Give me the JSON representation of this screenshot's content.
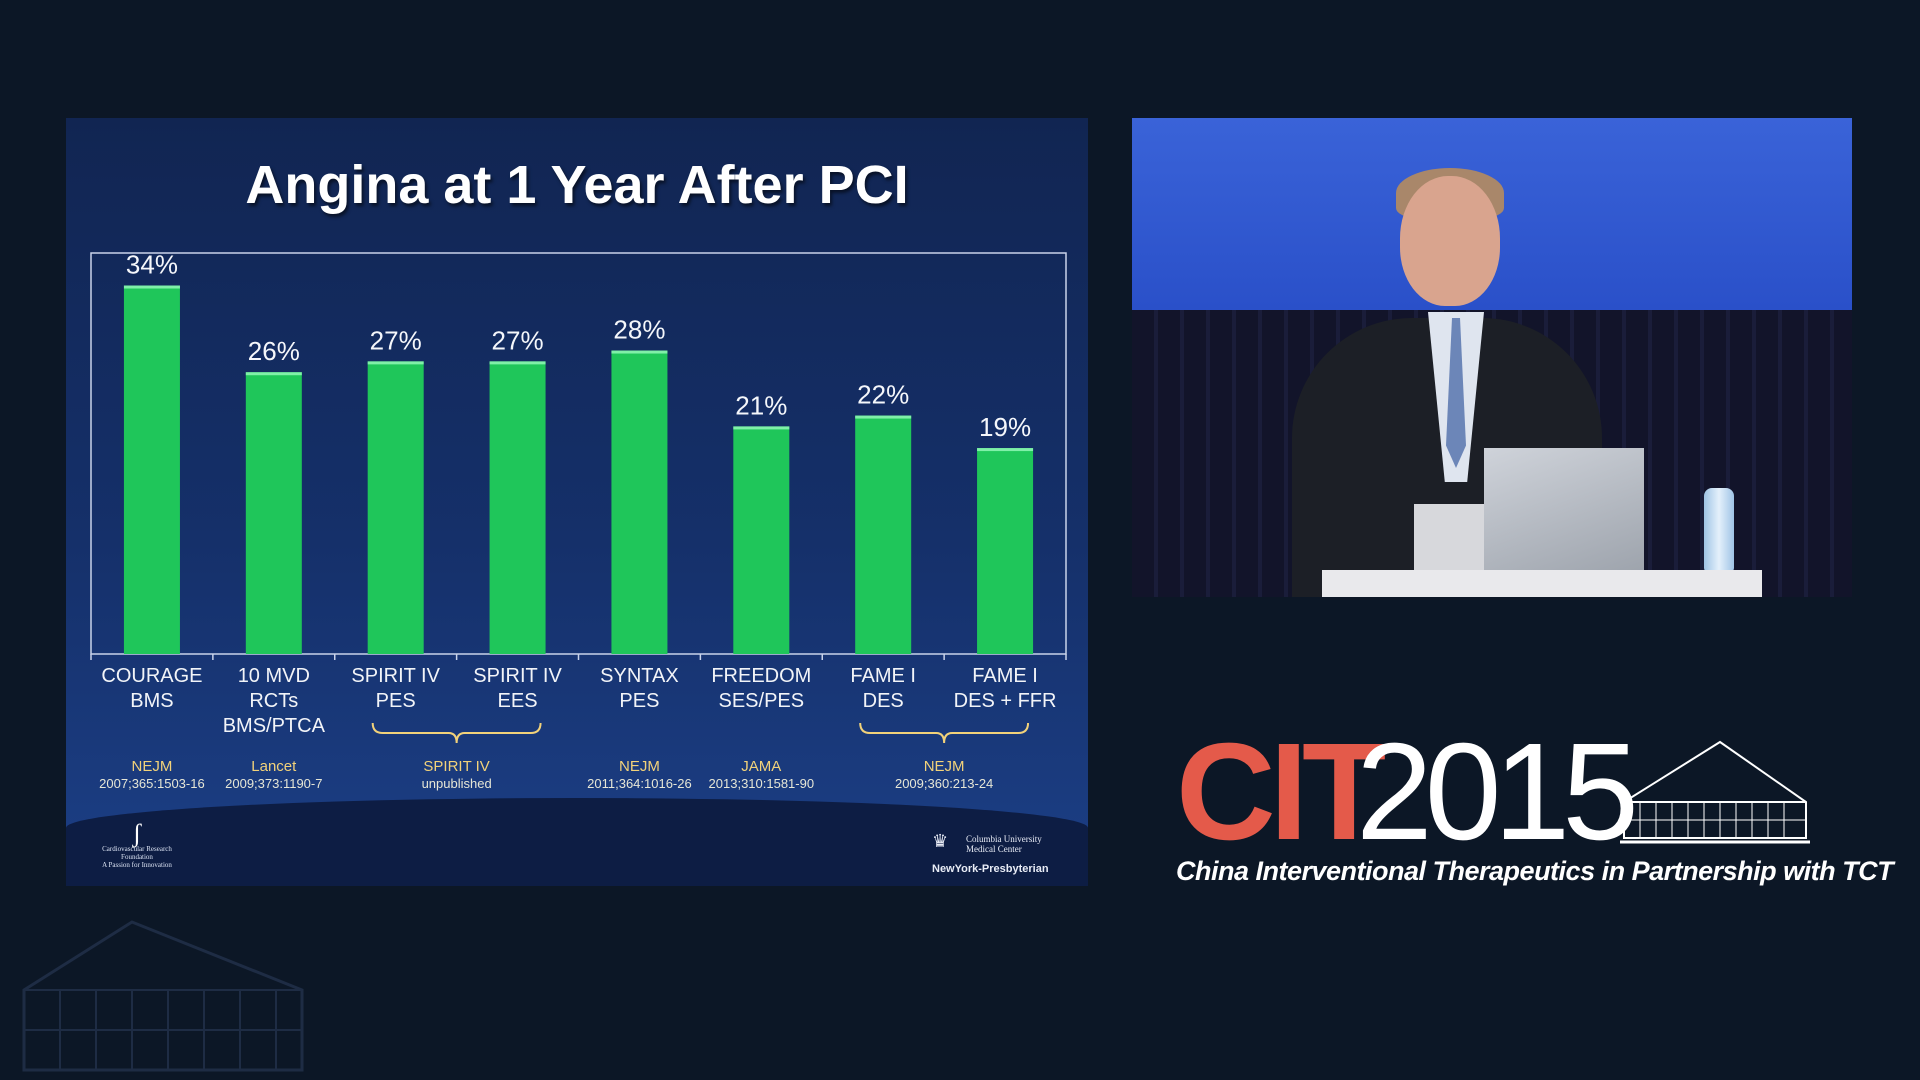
{
  "slide": {
    "title": "Angina at 1 Year After PCI",
    "logo_left_lines": [
      "Cardiovascular Research",
      "Foundation",
      "A Passion for Innovation"
    ],
    "logo_right_lines": [
      "Columbia University",
      "Medical Center",
      "NewYork-Presbyterian"
    ]
  },
  "chart_data": {
    "type": "bar",
    "title": "Angina at 1 Year After PCI",
    "xlabel": "",
    "ylabel": "",
    "ylim": [
      0,
      37
    ],
    "grid": false,
    "bar_color": "#1fc65a",
    "categories": [
      [
        "COURAGE",
        "BMS"
      ],
      [
        "10 MVD",
        "RCTs",
        "BMS/PTCA"
      ],
      [
        "SPIRIT IV",
        "PES"
      ],
      [
        "SPIRIT IV",
        "EES"
      ],
      [
        "SYNTAX",
        "PES"
      ],
      [
        "FREEDOM",
        "SES/PES"
      ],
      [
        "FAME I",
        "DES"
      ],
      [
        "FAME I",
        "DES + FFR"
      ]
    ],
    "values": [
      34,
      26,
      27,
      27,
      28,
      21,
      22,
      19
    ],
    "value_labels": [
      "34%",
      "26%",
      "27%",
      "27%",
      "28%",
      "21%",
      "22%",
      "19%"
    ],
    "references": [
      {
        "span": [
          0,
          0
        ],
        "journal": "NEJM",
        "citation": "2007;365:1503-16",
        "bracket": false
      },
      {
        "span": [
          1,
          1
        ],
        "journal": "Lancet",
        "citation": "2009;373:1190-7",
        "bracket": false
      },
      {
        "span": [
          2,
          3
        ],
        "journal": "SPIRIT IV",
        "citation": "unpublished",
        "bracket": true
      },
      {
        "span": [
          4,
          4
        ],
        "journal": "NEJM",
        "citation": "2011;364:1016-26",
        "bracket": false
      },
      {
        "span": [
          5,
          5
        ],
        "journal": "JAMA",
        "citation": "2013;310:1581-90",
        "bracket": false
      },
      {
        "span": [
          6,
          7
        ],
        "journal": "NEJM",
        "citation": "2009;360:213-24",
        "bracket": true
      }
    ]
  },
  "branding": {
    "cit_letters": "CIT",
    "cit_year": "2015",
    "tagline": "China Interventional Therapeutics in Partnership with TCT",
    "accent_color": "#e45a4a"
  }
}
